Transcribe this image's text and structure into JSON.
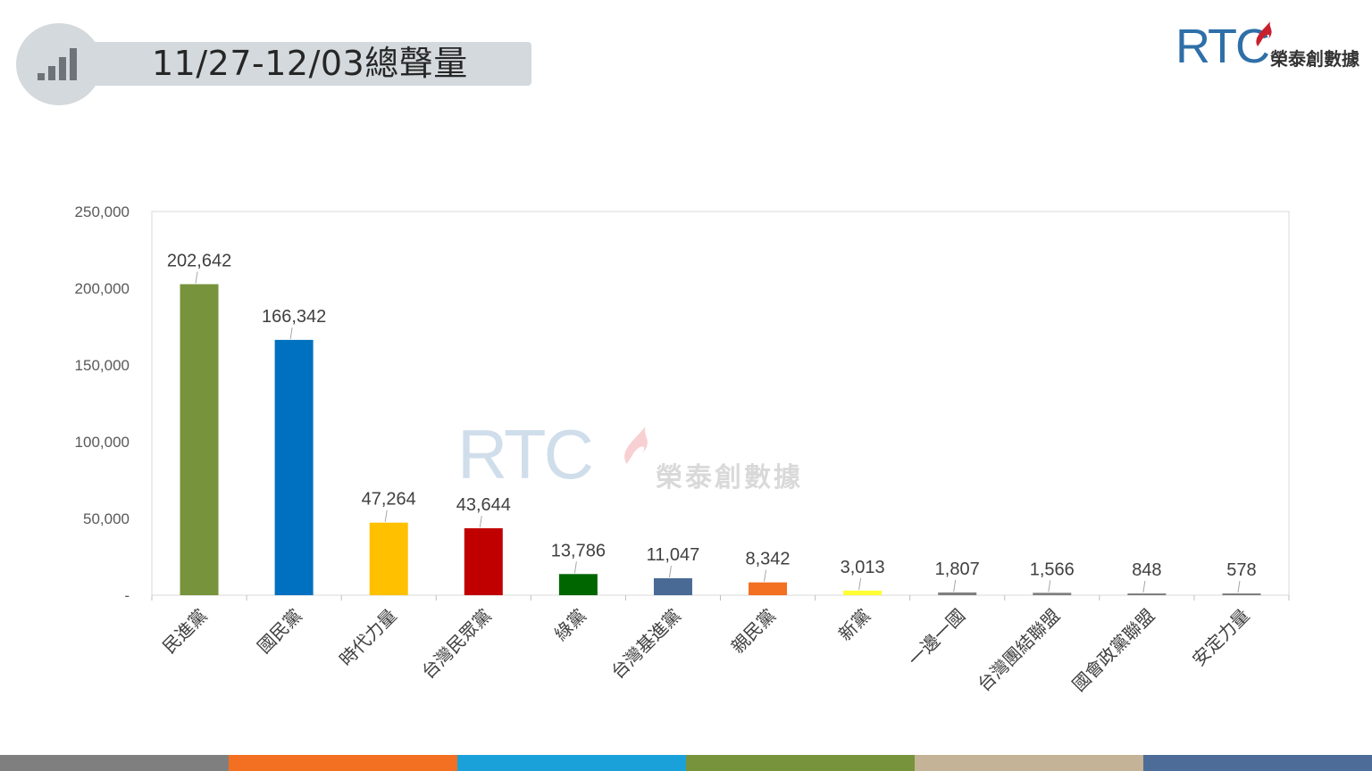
{
  "header": {
    "title": "11/27-12/03總聲量",
    "icon": "signal-bars-icon"
  },
  "logo": {
    "letters": "RTC",
    "name": "榮泰創數據"
  },
  "watermark": {
    "letters": "RTC",
    "name": "榮泰創數據"
  },
  "colors": {
    "header_bg": "#d3d9dc",
    "footer": [
      "#7f7f7f",
      "#f36f21",
      "#1ba1d9",
      "#77933c",
      "#c4b396",
      "#4e6c98"
    ]
  },
  "chart_data": {
    "type": "bar",
    "title": "",
    "xlabel": "",
    "ylabel": "",
    "ylim": [
      0,
      250000
    ],
    "yticks": [
      0,
      50000,
      100000,
      150000,
      200000,
      250000
    ],
    "ytick_labels": [
      "-",
      "50,000",
      "100,000",
      "150,000",
      "200,000",
      "250,000"
    ],
    "grid": false,
    "categories": [
      "民進黨",
      "國民黨",
      "時代力量",
      "台灣民眾黨",
      "綠黨",
      "台灣基進黨",
      "親民黨",
      "新黨",
      "一邊一國",
      "台灣團結聯盟",
      "國會政黨聯盟",
      "安定力量"
    ],
    "values": [
      202642,
      166342,
      47264,
      43644,
      13786,
      11047,
      8342,
      3013,
      1807,
      1566,
      848,
      578
    ],
    "value_labels": [
      "202,642",
      "166,342",
      "47,264",
      "43,644",
      "13,786",
      "11,047",
      "8,342",
      "3,013",
      "1,807",
      "1,566",
      "848",
      "578"
    ],
    "bar_colors": [
      "#77933c",
      "#0070c0",
      "#ffc000",
      "#c00000",
      "#006600",
      "#4a6a96",
      "#f36f21",
      "#ffff33",
      "#7f7f7f",
      "#7f7f7f",
      "#7f7f7f",
      "#7f7f7f"
    ]
  }
}
